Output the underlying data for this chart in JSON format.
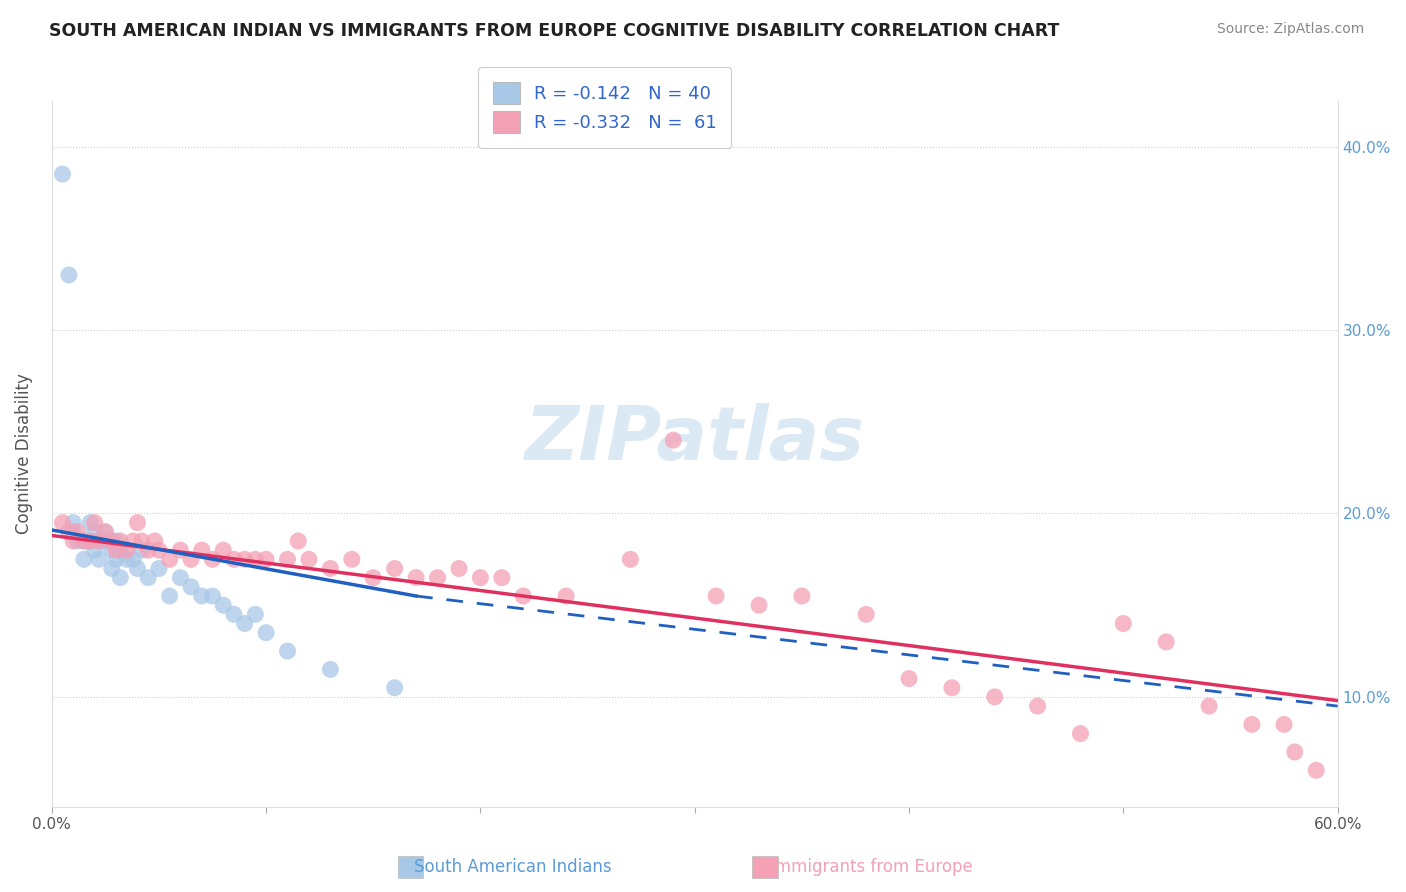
{
  "title": "SOUTH AMERICAN INDIAN VS IMMIGRANTS FROM EUROPE COGNITIVE DISABILITY CORRELATION CHART",
  "source": "Source: ZipAtlas.com",
  "ylabel": "Cognitive Disability",
  "xlim": [
    0.0,
    0.6
  ],
  "ylim": [
    0.04,
    0.425
  ],
  "x_ticks": [
    0.0,
    0.1,
    0.2,
    0.3,
    0.4,
    0.5,
    0.6
  ],
  "x_tick_labels": [
    "0.0%",
    "",
    "",
    "",
    "",
    "",
    "60.0%"
  ],
  "y_ticks": [
    0.1,
    0.2,
    0.3,
    0.4
  ],
  "y_tick_labels": [
    "10.0%",
    "20.0%",
    "30.0%",
    "40.0%"
  ],
  "legend_R1": "-0.142",
  "legend_N1": "40",
  "legend_R2": "-0.332",
  "legend_N2": "61",
  "blue_color": "#a8c8e8",
  "pink_color": "#f4a0b5",
  "trend_blue": "#2060c0",
  "trend_pink": "#e03060",
  "watermark": "ZIPatlas",
  "legend_label1": "South American Indians",
  "legend_label2": "Immigrants from Europe",
  "blue_scatter_x": [
    0.005,
    0.008,
    0.01,
    0.01,
    0.012,
    0.015,
    0.015,
    0.018,
    0.018,
    0.02,
    0.02,
    0.022,
    0.022,
    0.025,
    0.025,
    0.028,
    0.028,
    0.03,
    0.03,
    0.032,
    0.032,
    0.035,
    0.038,
    0.04,
    0.042,
    0.045,
    0.05,
    0.055,
    0.06,
    0.065,
    0.07,
    0.075,
    0.08,
    0.085,
    0.09,
    0.095,
    0.1,
    0.11,
    0.13,
    0.16
  ],
  "blue_scatter_y": [
    0.385,
    0.33,
    0.195,
    0.19,
    0.185,
    0.185,
    0.175,
    0.195,
    0.185,
    0.19,
    0.18,
    0.185,
    0.175,
    0.19,
    0.185,
    0.18,
    0.17,
    0.185,
    0.175,
    0.18,
    0.165,
    0.175,
    0.175,
    0.17,
    0.18,
    0.165,
    0.17,
    0.155,
    0.165,
    0.16,
    0.155,
    0.155,
    0.15,
    0.145,
    0.14,
    0.145,
    0.135,
    0.125,
    0.115,
    0.105
  ],
  "pink_scatter_x": [
    0.005,
    0.008,
    0.01,
    0.012,
    0.015,
    0.018,
    0.02,
    0.022,
    0.025,
    0.028,
    0.03,
    0.032,
    0.035,
    0.038,
    0.04,
    0.042,
    0.045,
    0.048,
    0.05,
    0.055,
    0.06,
    0.065,
    0.07,
    0.075,
    0.08,
    0.085,
    0.09,
    0.095,
    0.1,
    0.11,
    0.115,
    0.12,
    0.13,
    0.14,
    0.15,
    0.16,
    0.17,
    0.18,
    0.19,
    0.2,
    0.21,
    0.22,
    0.24,
    0.27,
    0.29,
    0.31,
    0.33,
    0.35,
    0.38,
    0.4,
    0.42,
    0.44,
    0.46,
    0.48,
    0.5,
    0.52,
    0.54,
    0.56,
    0.575,
    0.58,
    0.59
  ],
  "pink_scatter_y": [
    0.195,
    0.19,
    0.185,
    0.19,
    0.185,
    0.185,
    0.195,
    0.185,
    0.19,
    0.185,
    0.18,
    0.185,
    0.18,
    0.185,
    0.195,
    0.185,
    0.18,
    0.185,
    0.18,
    0.175,
    0.18,
    0.175,
    0.18,
    0.175,
    0.18,
    0.175,
    0.175,
    0.175,
    0.175,
    0.175,
    0.185,
    0.175,
    0.17,
    0.175,
    0.165,
    0.17,
    0.165,
    0.165,
    0.17,
    0.165,
    0.165,
    0.155,
    0.155,
    0.175,
    0.24,
    0.155,
    0.15,
    0.155,
    0.145,
    0.11,
    0.105,
    0.1,
    0.095,
    0.08,
    0.14,
    0.13,
    0.095,
    0.085,
    0.085,
    0.07,
    0.06
  ],
  "blue_trend_x0": 0.0,
  "blue_trend_y0": 0.191,
  "blue_trend_x1": 0.17,
  "blue_trend_y1": 0.155,
  "blue_trend_x2": 0.6,
  "blue_trend_y2": 0.095,
  "pink_trend_x0": 0.0,
  "pink_trend_y0": 0.188,
  "pink_trend_x1": 0.6,
  "pink_trend_y1": 0.098
}
